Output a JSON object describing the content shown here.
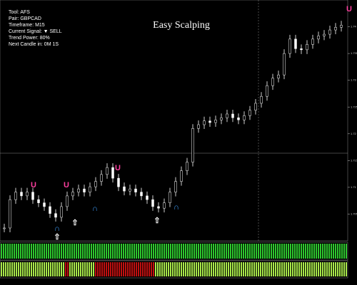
{
  "header": {
    "title": "Easy Scalping"
  },
  "info_panel": [
    "Tool: AFS",
    "Pair: GBPCAD",
    "Timeframe: M15",
    "Current Signal: ▼ SELL",
    "Trend Power: 80%",
    "Next Candle in: 0M 1S"
  ],
  "chart": {
    "type": "bar-line",
    "closes": [
      1.7024,
      1.7077,
      1.7091,
      1.7084,
      1.7091,
      1.7077,
      1.7071,
      1.7064,
      1.7051,
      1.7044,
      1.7064,
      1.7084,
      1.7091,
      1.7097,
      1.7091,
      1.7101,
      1.7111,
      1.7124,
      1.7137,
      1.7117,
      1.7101,
      1.7093,
      1.7097,
      1.7091,
      1.7084,
      1.7077,
      1.7064,
      1.7061,
      1.7071,
      1.7091,
      1.7111,
      1.7131,
      1.7147,
      1.721,
      1.7217,
      1.7224,
      1.7221,
      1.7226,
      1.723,
      1.7237,
      1.723,
      1.7226,
      1.7234,
      1.7244,
      1.7257,
      1.727,
      1.729,
      1.7304,
      1.731,
      1.735,
      1.7377,
      1.7359,
      1.7357,
      1.7367,
      1.7377,
      1.7383,
      1.7386,
      1.7394,
      1.7399,
      1.7403
    ],
    "color": "#ffffff",
    "ylim": [
      1.7,
      1.745
    ],
    "yticks": [
      1.705,
      1.71,
      1.715,
      1.72,
      1.725,
      1.73,
      1.735,
      1.74
    ]
  }
}
